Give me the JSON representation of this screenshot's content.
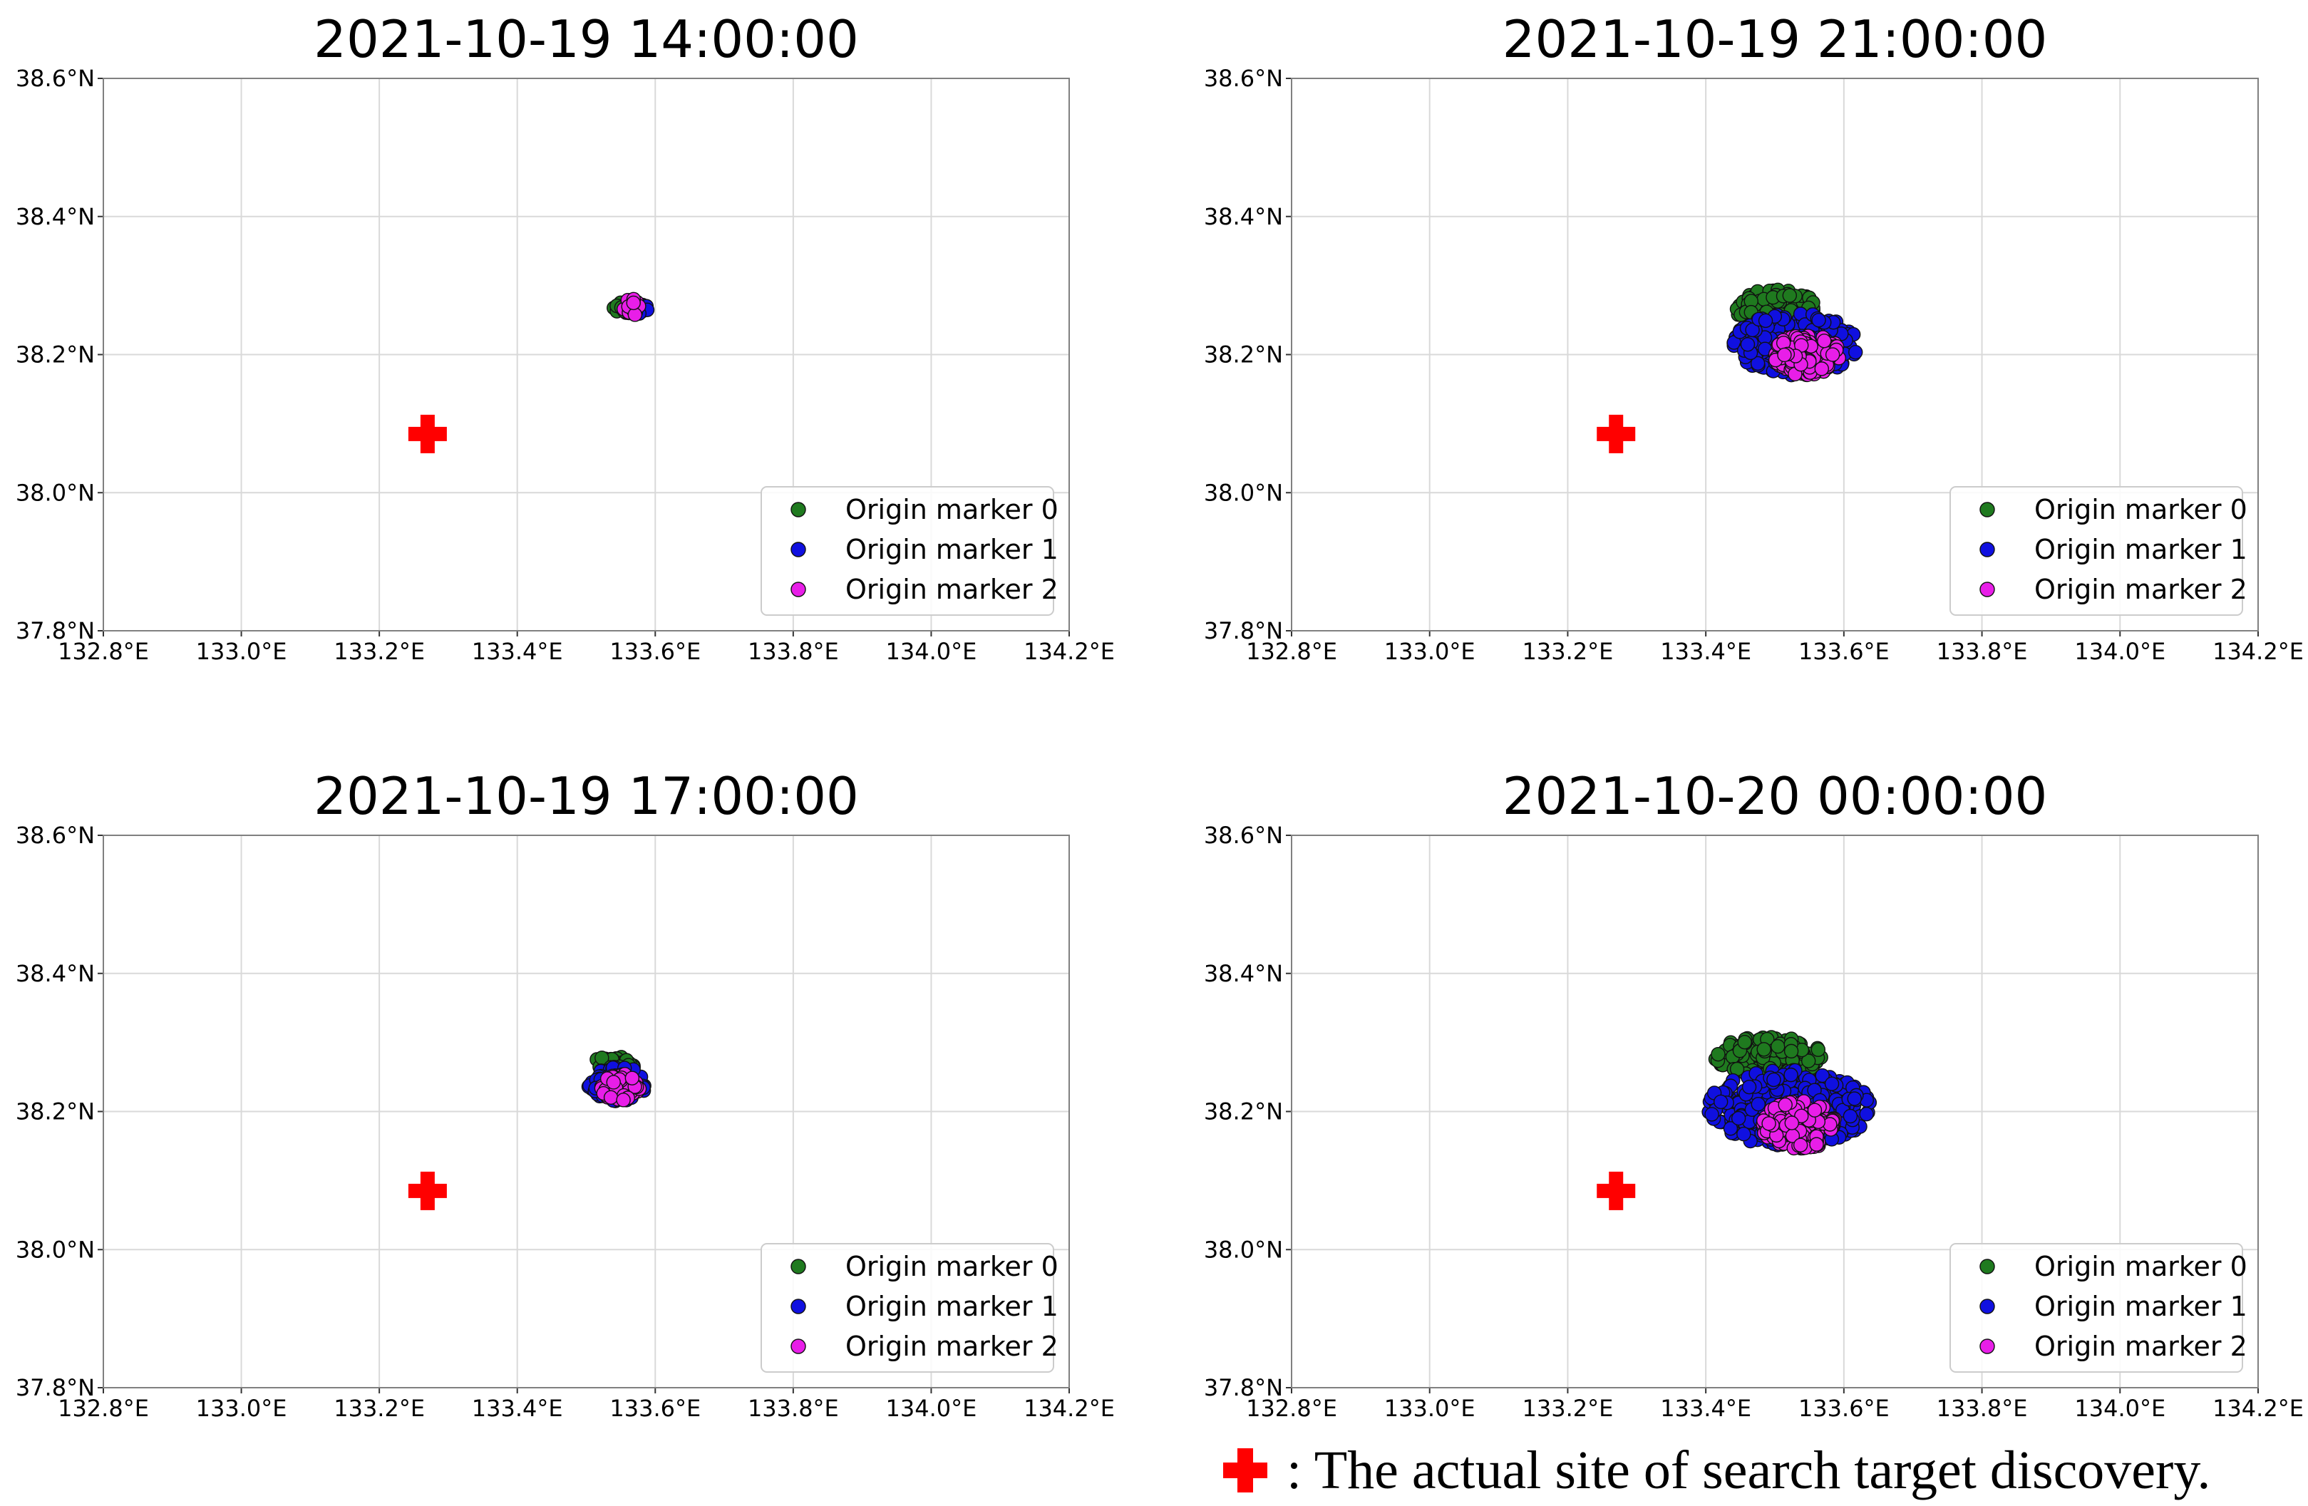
{
  "chart_data": [
    {
      "type": "scatter",
      "title": "2021-10-19 14:00:00",
      "xlim": [
        132.8,
        134.2
      ],
      "ylim": [
        37.8,
        38.6
      ],
      "x_ticks": [
        "132.8°E",
        "133.0°E",
        "133.2°E",
        "133.4°E",
        "133.6°E",
        "133.8°E",
        "134.0°E",
        "134.2°E"
      ],
      "y_ticks": [
        "37.8°N",
        "38.0°N",
        "38.2°N",
        "38.4°N",
        "38.6°N"
      ],
      "grid": true,
      "legend_position": "lower-right",
      "target_site": {
        "lon": 133.27,
        "lat": 38.085
      },
      "series": [
        {
          "name": "Origin marker 0",
          "color": "#1f7a1f",
          "cloud": {
            "center": [
              133.555,
              38.268
            ],
            "spread": [
              0.015,
              0.008
            ],
            "count": 14
          }
        },
        {
          "name": "Origin marker 1",
          "color": "#1010e0",
          "cloud": {
            "center": [
              133.575,
              38.266
            ],
            "spread": [
              0.017,
              0.008
            ],
            "count": 18
          }
        },
        {
          "name": "Origin marker 2",
          "color": "#e81ee8",
          "cloud": {
            "center": [
              133.565,
              38.268
            ],
            "spread": [
              0.012,
              0.013
            ],
            "count": 16
          }
        }
      ]
    },
    {
      "type": "scatter",
      "title": "2021-10-19 21:00:00",
      "xlim": [
        132.8,
        134.2
      ],
      "ylim": [
        37.8,
        38.6
      ],
      "x_ticks": [
        "132.8°E",
        "133.0°E",
        "133.2°E",
        "133.4°E",
        "133.6°E",
        "133.8°E",
        "134.0°E",
        "134.2°E"
      ],
      "y_ticks": [
        "37.8°N",
        "38.0°N",
        "38.2°N",
        "38.4°N",
        "38.6°N"
      ],
      "grid": true,
      "legend_position": "lower-right",
      "target_site": {
        "lon": 133.27,
        "lat": 38.085
      },
      "series": [
        {
          "name": "Origin marker 0",
          "color": "#1f7a1f",
          "cloud": {
            "center": [
              133.5,
              38.268
            ],
            "spread": [
              0.06,
              0.026
            ],
            "count": 120
          }
        },
        {
          "name": "Origin marker 1",
          "color": "#1010e0",
          "cloud": {
            "center": [
              133.53,
              38.215
            ],
            "spread": [
              0.09,
              0.045
            ],
            "count": 240
          }
        },
        {
          "name": "Origin marker 2",
          "color": "#e81ee8",
          "cloud": {
            "center": [
              133.545,
              38.2
            ],
            "spread": [
              0.05,
              0.03
            ],
            "count": 130
          }
        }
      ]
    },
    {
      "type": "scatter",
      "title": "2021-10-19 17:00:00",
      "xlim": [
        132.8,
        134.2
      ],
      "ylim": [
        37.8,
        38.6
      ],
      "x_ticks": [
        "132.8°E",
        "133.0°E",
        "133.2°E",
        "133.4°E",
        "133.6°E",
        "133.8°E",
        "134.0°E",
        "134.2°E"
      ],
      "y_ticks": [
        "37.8°N",
        "38.0°N",
        "38.2°N",
        "38.4°N",
        "38.6°N"
      ],
      "grid": true,
      "legend_position": "lower-right",
      "target_site": {
        "lon": 133.27,
        "lat": 38.085
      },
      "series": [
        {
          "name": "Origin marker 0",
          "color": "#1f7a1f",
          "cloud": {
            "center": [
              133.54,
              38.268
            ],
            "spread": [
              0.03,
              0.013
            ],
            "count": 40
          }
        },
        {
          "name": "Origin marker 1",
          "color": "#1010e0",
          "cloud": {
            "center": [
              133.545,
              38.24
            ],
            "spread": [
              0.042,
              0.025
            ],
            "count": 110
          }
        },
        {
          "name": "Origin marker 2",
          "color": "#e81ee8",
          "cloud": {
            "center": [
              133.55,
              38.235
            ],
            "spread": [
              0.028,
              0.02
            ],
            "count": 70
          }
        }
      ]
    },
    {
      "type": "scatter",
      "title": "2021-10-20 00:00:00",
      "xlim": [
        132.8,
        134.2
      ],
      "ylim": [
        37.8,
        38.6
      ],
      "x_ticks": [
        "132.8°E",
        "133.0°E",
        "133.2°E",
        "133.4°E",
        "133.6°E",
        "133.8°E",
        "134.0°E",
        "134.2°E"
      ],
      "y_ticks": [
        "37.8°N",
        "38.0°N",
        "38.2°N",
        "38.4°N",
        "38.6°N"
      ],
      "grid": true,
      "legend_position": "lower-right",
      "target_site": {
        "lon": 133.27,
        "lat": 38.085
      },
      "series": [
        {
          "name": "Origin marker 0",
          "color": "#1f7a1f",
          "cloud": {
            "center": [
              133.49,
              38.28
            ],
            "spread": [
              0.08,
              0.028
            ],
            "count": 150
          }
        },
        {
          "name": "Origin marker 1",
          "color": "#1010e0",
          "cloud": {
            "center": [
              133.52,
              38.205
            ],
            "spread": [
              0.12,
              0.055
            ],
            "count": 300
          }
        },
        {
          "name": "Origin marker 2",
          "color": "#e81ee8",
          "cloud": {
            "center": [
              133.535,
              38.18
            ],
            "spread": [
              0.055,
              0.035
            ],
            "count": 170
          }
        }
      ]
    }
  ],
  "footnote": {
    "symbol": "✚",
    "text": ": The actual site of search target discovery."
  },
  "colors": {
    "target_marker": "#ff0000",
    "grid": "#d9d9d9",
    "axes": "#808080"
  }
}
